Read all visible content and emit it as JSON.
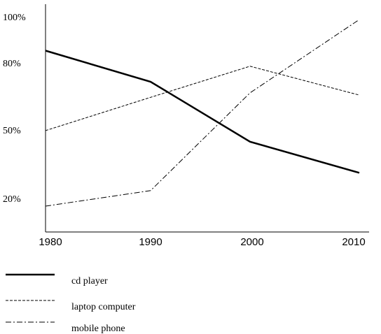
{
  "chart_data": {
    "type": "line",
    "x": [
      "1980",
      "1990",
      "2000",
      "2010"
    ],
    "ytick_labels": [
      "100%",
      "80%",
      "50%",
      "20%"
    ],
    "yticks": [
      100,
      80,
      50,
      20
    ],
    "ylim": [
      6,
      103
    ],
    "series": [
      {
        "name": "cd player",
        "values": [
          87,
          73,
          46,
          32
        ],
        "style": "solid",
        "color": "#000000"
      },
      {
        "name": "laptop computer",
        "values": [
          51,
          66,
          80,
          67
        ],
        "style": "dashed",
        "color": "#000000"
      },
      {
        "name": "mobile phone",
        "values": [
          17,
          24,
          68,
          101
        ],
        "style": "dashdot",
        "color": "#000000"
      }
    ],
    "legend_position": "bottom-left",
    "grid": false
  }
}
